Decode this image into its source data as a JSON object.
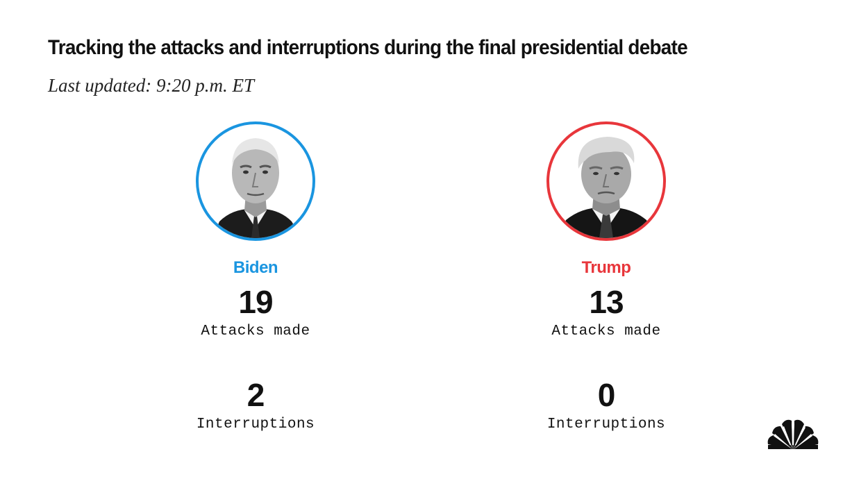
{
  "header": {
    "title": "Tracking the attacks and interruptions during the final presidential debate",
    "subtitle": "Last updated: 9:20 p.m. ET"
  },
  "candidates": [
    {
      "name": "Biden",
      "color": "#1a95e0",
      "attacks": "19",
      "attacks_label": "Attacks made",
      "interruptions": "2",
      "interruptions_label": "Interruptions"
    },
    {
      "name": "Trump",
      "color": "#e8363b",
      "attacks": "13",
      "attacks_label": "Attacks made",
      "interruptions": "0",
      "interruptions_label": "Interruptions"
    }
  ],
  "logo": {
    "icon": "peacock-logo-icon"
  }
}
